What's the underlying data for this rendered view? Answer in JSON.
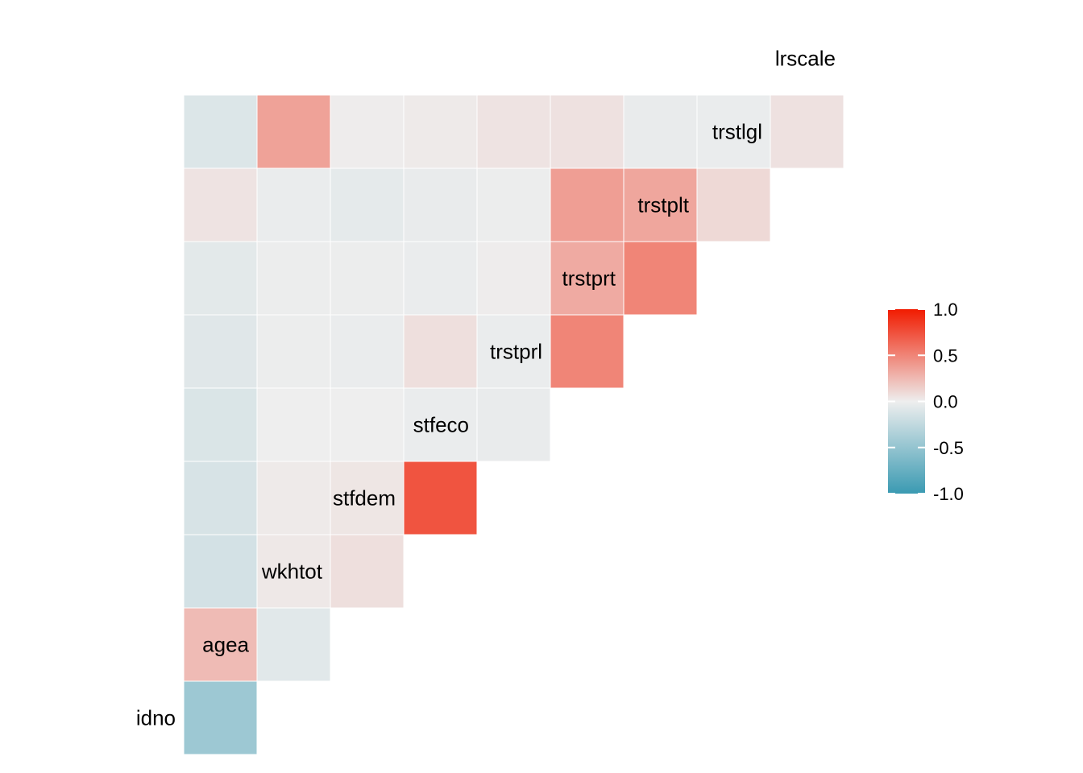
{
  "chart_data": {
    "type": "heatmap",
    "subtype": "lower-triangular correlation matrix",
    "variables": [
      "idno",
      "agea",
      "wkhtot",
      "stfdem",
      "stfeco",
      "trstprl",
      "trstprt",
      "trstplt",
      "trstlgl",
      "lrscale"
    ],
    "cells": [
      {
        "row": "agea",
        "col": "idno",
        "value": -0.45
      },
      {
        "row": "wkhtot",
        "col": "idno",
        "value": 0.24
      },
      {
        "row": "wkhtot",
        "col": "agea",
        "value": -0.07
      },
      {
        "row": "stfdem",
        "col": "idno",
        "value": -0.15
      },
      {
        "row": "stfdem",
        "col": "agea",
        "value": 0.03
      },
      {
        "row": "stfdem",
        "col": "wkhtot",
        "value": 0.07
      },
      {
        "row": "stfeco",
        "col": "idno",
        "value": -0.13
      },
      {
        "row": "stfeco",
        "col": "agea",
        "value": 0.02
      },
      {
        "row": "stfeco",
        "col": "wkhtot",
        "value": 0.04
      },
      {
        "row": "stfeco",
        "col": "stfdem",
        "value": 0.73
      },
      {
        "row": "trstprl",
        "col": "idno",
        "value": -0.11
      },
      {
        "row": "trstprl",
        "col": "agea",
        "value": 0.0
      },
      {
        "row": "trstprl",
        "col": "wkhtot",
        "value": 0.0
      },
      {
        "row": "trstprl",
        "col": "stfdem",
        "value": -0.02
      },
      {
        "row": "trstprl",
        "col": "stfeco",
        "value": -0.03
      },
      {
        "row": "trstprt",
        "col": "idno",
        "value": -0.08
      },
      {
        "row": "trstprt",
        "col": "agea",
        "value": -0.01
      },
      {
        "row": "trstprt",
        "col": "wkhtot",
        "value": -0.02
      },
      {
        "row": "trstprt",
        "col": "stfdem",
        "value": 0.07
      },
      {
        "row": "trstprt",
        "col": "stfeco",
        "value": -0.02
      },
      {
        "row": "trstprt",
        "col": "trstprl",
        "value": 0.5
      },
      {
        "row": "trstplt",
        "col": "idno",
        "value": -0.06
      },
      {
        "row": "trstplt",
        "col": "agea",
        "value": -0.01
      },
      {
        "row": "trstplt",
        "col": "wkhtot",
        "value": -0.01
      },
      {
        "row": "trstplt",
        "col": "stfdem",
        "value": -0.02
      },
      {
        "row": "trstplt",
        "col": "stfeco",
        "value": 0.01
      },
      {
        "row": "trstplt",
        "col": "trstprl",
        "value": 0.32
      },
      {
        "row": "trstplt",
        "col": "trstprt",
        "value": 0.5
      },
      {
        "row": "trstlgl",
        "col": "idno",
        "value": 0.05
      },
      {
        "row": "trstlgl",
        "col": "agea",
        "value": -0.02
      },
      {
        "row": "trstlgl",
        "col": "wkhtot",
        "value": -0.05
      },
      {
        "row": "trstlgl",
        "col": "stfdem",
        "value": -0.03
      },
      {
        "row": "trstlgl",
        "col": "stfeco",
        "value": -0.01
      },
      {
        "row": "trstlgl",
        "col": "trstprl",
        "value": 0.38
      },
      {
        "row": "trstlgl",
        "col": "trstprt",
        "value": 0.34
      },
      {
        "row": "trstlgl",
        "col": "trstplt",
        "value": 0.1
      },
      {
        "row": "lrscale",
        "col": "idno",
        "value": -0.1
      },
      {
        "row": "lrscale",
        "col": "agea",
        "value": 0.36
      },
      {
        "row": "lrscale",
        "col": "wkhtot",
        "value": 0.01
      },
      {
        "row": "lrscale",
        "col": "stfdem",
        "value": 0.02
      },
      {
        "row": "lrscale",
        "col": "stfeco",
        "value": 0.05
      },
      {
        "row": "lrscale",
        "col": "trstprl",
        "value": 0.06
      },
      {
        "row": "lrscale",
        "col": "trstprt",
        "value": -0.03
      },
      {
        "row": "lrscale",
        "col": "trstplt",
        "value": -0.02
      },
      {
        "row": "lrscale",
        "col": "trstlgl",
        "value": 0.06
      }
    ],
    "legend": {
      "ticks": [
        "1.0",
        "0.5",
        "0.0",
        "-0.5",
        "-1.0"
      ],
      "limits": [
        -1,
        1
      ],
      "placement": "right",
      "colors": {
        "low": "#3a9ab2",
        "mid": "#eeeeee",
        "high": "#f11b00"
      }
    },
    "grid": false,
    "title": "",
    "xlabel": "",
    "ylabel": ""
  }
}
